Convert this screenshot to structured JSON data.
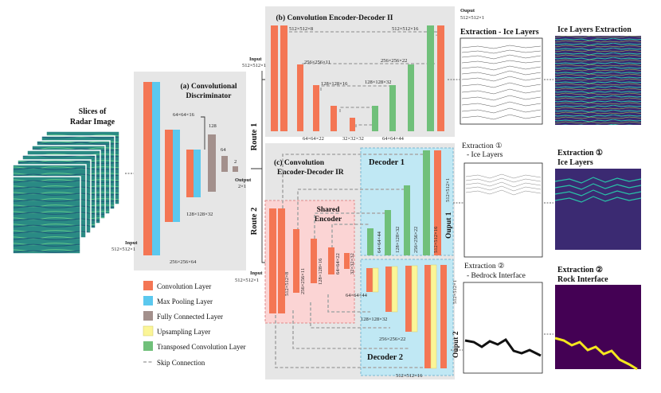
{
  "slices": {
    "title_line1": "Slices of",
    "title_line2": "Radar Image"
  },
  "discriminator": {
    "title_line1": "(a) Convolutional",
    "title_line2": "Discriminator",
    "input_label": "Input",
    "input_dims": "512×512×1",
    "dims": {
      "d256x64": "256×256×64",
      "d64x16": "64×64×16",
      "d128x32": "128×128×32",
      "fc128": "128",
      "fc64": "64",
      "fc2": "2"
    },
    "output_label": "Output",
    "output_dims": "2×1"
  },
  "encdec2": {
    "title": "(b) Convolution Encoder-Decoder II",
    "input_label": "Input",
    "input_dims": "512×512×1",
    "dims": {
      "e512": "512×512×8",
      "e256": "256×256×11",
      "e128": "128×128×16",
      "e64": "64×64×22",
      "e32": "32×32×32",
      "d64": "64×64×44",
      "d128": "128×128×32",
      "d256": "256×256×22",
      "d512": "512×512×16"
    }
  },
  "encdec_ir": {
    "title_line1": "(c) Convolution",
    "title_line2": "Encoder-Decoder IR",
    "input_label": "Input",
    "input_dims": "512×512×1",
    "shared_encoder_line1": "Shared",
    "shared_encoder_line2": "Encoder",
    "decoder1_label": "Decoder 1",
    "decoder2_label": "Decoder 2",
    "enc_dims": {
      "e512": "512×512×8",
      "e256": "256×256×11",
      "e128": "128×128×16",
      "e64": "64×64×22",
      "e32": "32×32×32"
    },
    "dec1_dims": {
      "d64": "64×64×44",
      "d128": "128×128×32",
      "d256": "256×256×22",
      "d512": "512×512×16",
      "out": "512×512×1"
    },
    "dec2_dims": {
      "d64": "64×64×44",
      "d128": "128×128×32",
      "d256": "256×256×22",
      "d512": "512×512×16",
      "out": "512×512×1"
    },
    "output1_label": "Ouput 1",
    "output2_label": "Ouput 2"
  },
  "routes": {
    "route1": "Route 1",
    "route2": "Route 2"
  },
  "legend": [
    {
      "label": "Convolution Layer",
      "color": "#f47654"
    },
    {
      "label": "Max Pooling Layer",
      "color": "#5bc8ee"
    },
    {
      "label": "Fully Connected Layer",
      "color": "#a3908c"
    },
    {
      "label": "Upsampling Layer",
      "color": "#fbf597"
    },
    {
      "label": "Transposed Convolution Layer",
      "color": "#70c07a"
    },
    {
      "label": "Skip Connection",
      "color": "#a8a8a8"
    }
  ],
  "outputs": {
    "top_label": "Ouput",
    "top_dims": "512×512×1",
    "ice_extraction_title": "Extraction - Ice Layers",
    "ice_layers_extraction": "Ice Layers Extraction",
    "extraction1_title": "Extraction ①",
    "extraction1_sub": "- Ice Layers",
    "extraction1_right_line1": "Extraction ①",
    "extraction1_right_line2": "Ice Layers",
    "extraction2_title": "Extraction ②",
    "extraction2_sub": "- Bedrock Interface",
    "extraction2_right_line1": "Extraction ②",
    "extraction2_right_line2": "Rock Interface"
  },
  "colors": {
    "conv": "#f47654",
    "pool": "#5bc8ee",
    "fc": "#a3908c",
    "upsample": "#fbf597",
    "tconv": "#70c07a",
    "panel_gray": "#e6e6e6",
    "decoder_blue": "#c0e8f4",
    "encoder_pink": "#fbd4d4",
    "heat_bg": "#440154"
  }
}
